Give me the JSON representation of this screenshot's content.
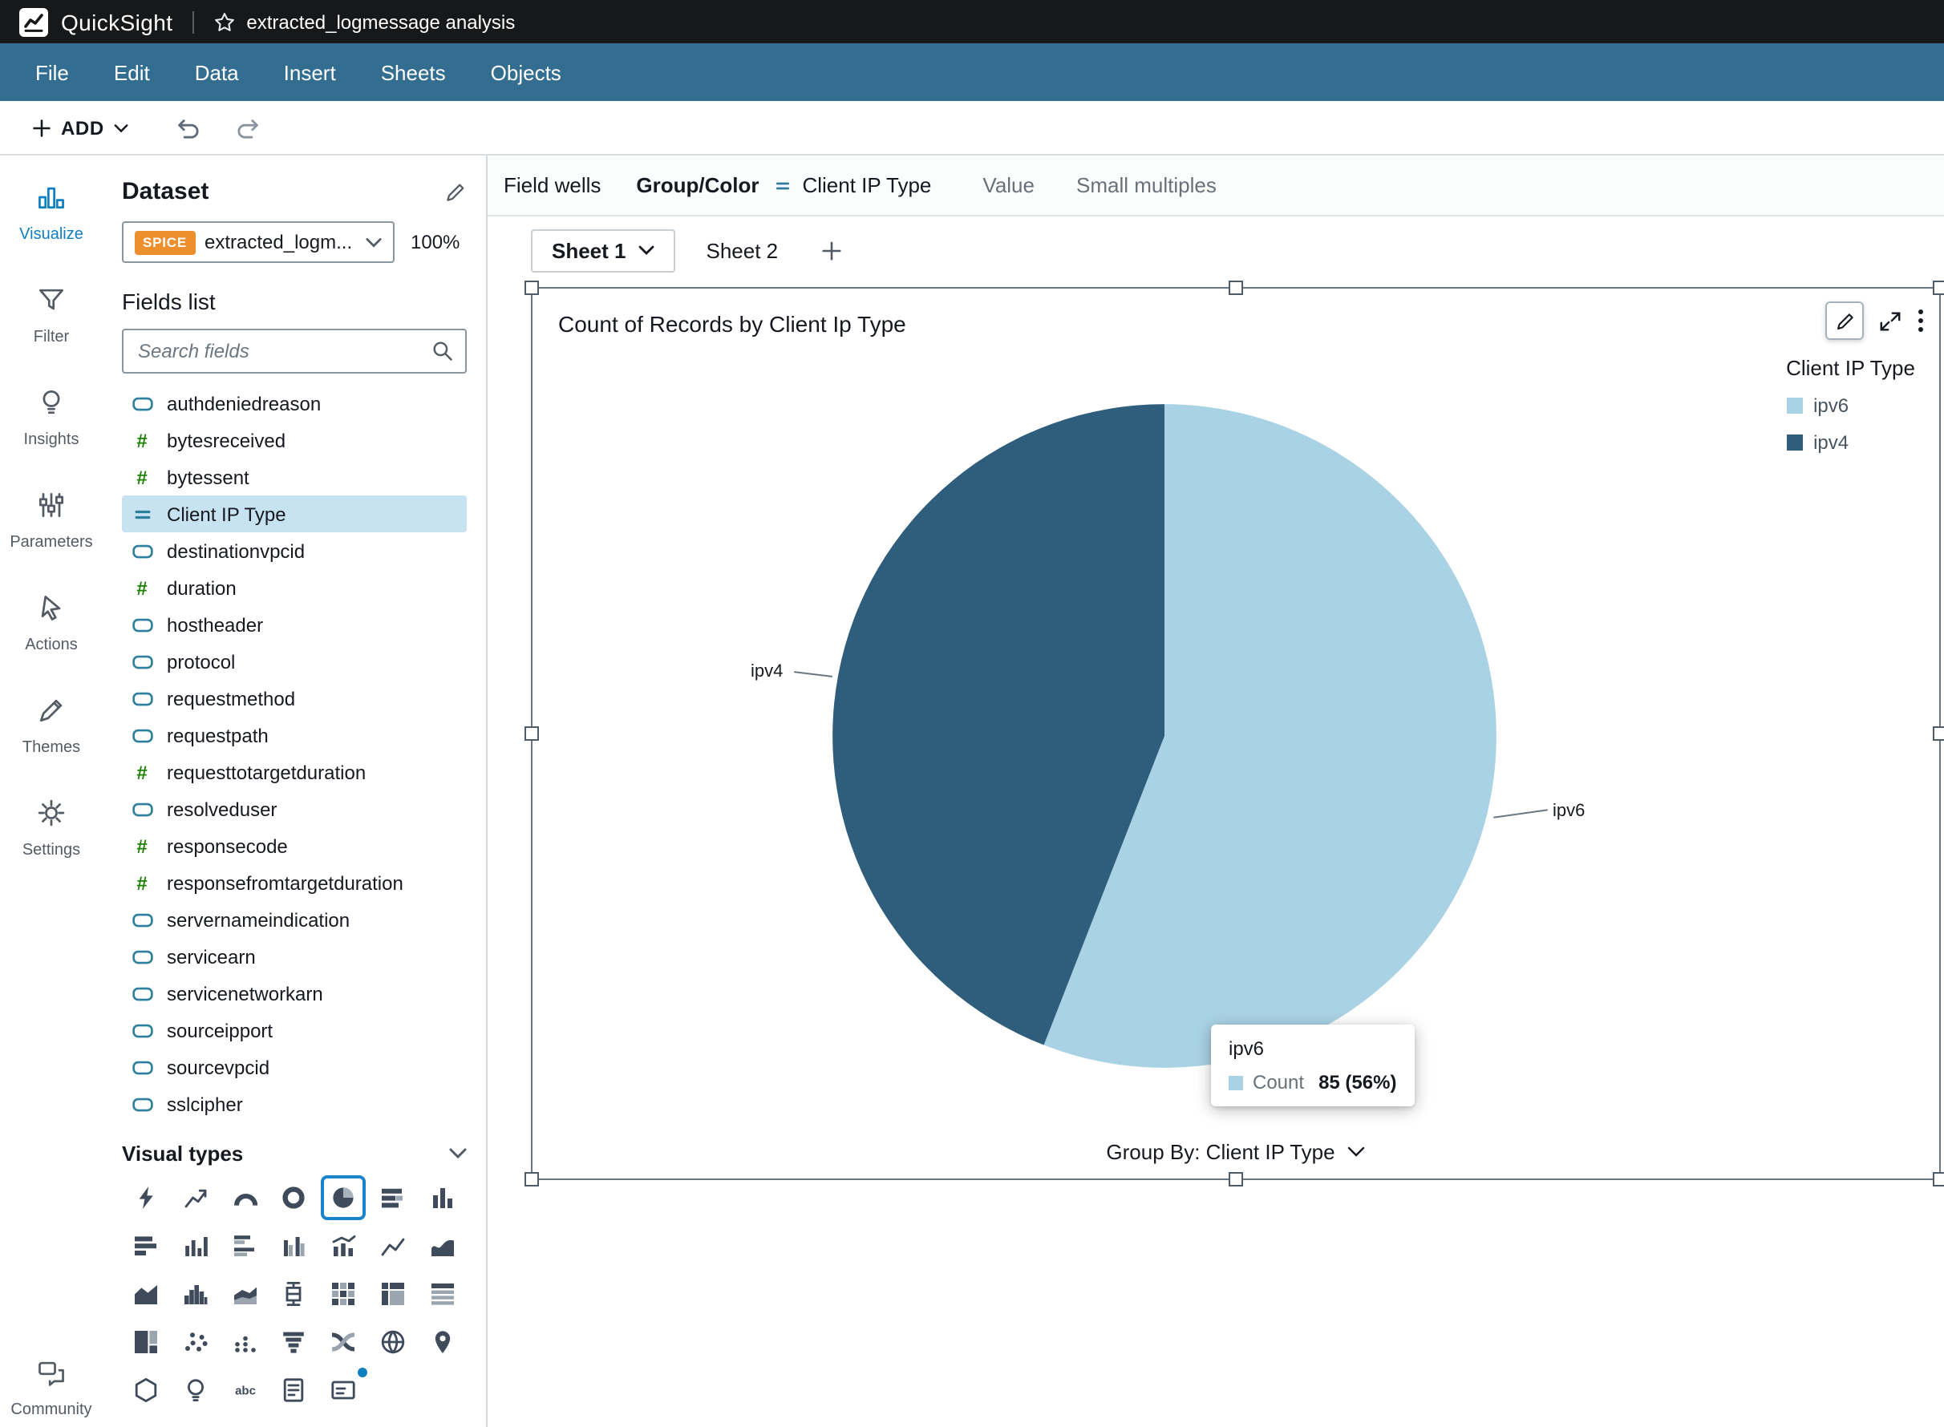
{
  "topbar": {
    "app_name": "QuickSight",
    "analysis_title": "extracted_logmessage analysis"
  },
  "menubar": {
    "items": [
      "File",
      "Edit",
      "Data",
      "Insert",
      "Sheets",
      "Objects"
    ]
  },
  "toolbar": {
    "add_label": "ADD"
  },
  "nav_rail": {
    "items": [
      {
        "label": "Visualize",
        "icon": "visualize-icon",
        "active": true
      },
      {
        "label": "Filter",
        "icon": "filter-icon",
        "active": false
      },
      {
        "label": "Insights",
        "icon": "insights-icon",
        "active": false
      },
      {
        "label": "Parameters",
        "icon": "parameters-icon",
        "active": false
      },
      {
        "label": "Actions",
        "icon": "actions-icon",
        "active": false
      },
      {
        "label": "Themes",
        "icon": "themes-icon",
        "active": false
      },
      {
        "label": "Settings",
        "icon": "settings-icon",
        "active": false
      }
    ],
    "bottom_item": {
      "label": "Community",
      "icon": "community-icon"
    }
  },
  "dataset_panel": {
    "title": "Dataset",
    "spice_badge": "SPICE",
    "dataset_name": "extracted_logm...",
    "spice_percent": "100%",
    "fields_title": "Fields list",
    "search_placeholder": "Search fields",
    "fields": [
      {
        "name": "authdeniedreason",
        "type": "string"
      },
      {
        "name": "bytesreceived",
        "type": "number"
      },
      {
        "name": "bytessent",
        "type": "number"
      },
      {
        "name": "Client IP Type",
        "type": "calculated",
        "selected": true
      },
      {
        "name": "destinationvpcid",
        "type": "string"
      },
      {
        "name": "duration",
        "type": "number"
      },
      {
        "name": "hostheader",
        "type": "string"
      },
      {
        "name": "protocol",
        "type": "string"
      },
      {
        "name": "requestmethod",
        "type": "string"
      },
      {
        "name": "requestpath",
        "type": "string"
      },
      {
        "name": "requesttotargetduration",
        "type": "number"
      },
      {
        "name": "resolveduser",
        "type": "string"
      },
      {
        "name": "responsecode",
        "type": "number"
      },
      {
        "name": "responsefromtargetduration",
        "type": "number"
      },
      {
        "name": "servernameindication",
        "type": "string"
      },
      {
        "name": "servicearn",
        "type": "string"
      },
      {
        "name": "servicenetworkarn",
        "type": "string"
      },
      {
        "name": "sourceipport",
        "type": "string"
      },
      {
        "name": "sourcevpcid",
        "type": "string"
      },
      {
        "name": "sslcipher",
        "type": "string"
      }
    ],
    "visual_types": {
      "title": "Visual types",
      "selected": "pie",
      "options": [
        "bolt",
        "trend-up",
        "gauge",
        "donut",
        "pie",
        "bar-h-stacked",
        "bar-v",
        "bar-h",
        "bar-v-small",
        "bar-h-multi",
        "bar-v-paired",
        "combo",
        "line",
        "area-smooth",
        "area",
        "histogram",
        "stacked-area",
        "box-plot",
        "heatmap",
        "pivot-table",
        "table",
        "treemap",
        "scatter",
        "dot-plot",
        "funnel",
        "sankey",
        "filled-map",
        "points-map",
        "hex",
        "insight-bulb",
        "word-cloud",
        "narrative",
        "kpi"
      ]
    }
  },
  "field_wells": {
    "label": "Field wells",
    "group_color_label": "Group/Color",
    "group_color_value": "Client IP Type",
    "value_label": "Value",
    "small_multiples_label": "Small multiples"
  },
  "sheets": {
    "tabs": [
      "Sheet 1",
      "Sheet 2"
    ],
    "active": "Sheet 1"
  },
  "visual": {
    "title": "Count of Records by Client Ip Type",
    "legend_title": "Client IP Type",
    "group_by_label": "Group By: Client IP Type",
    "tooltip": {
      "category": "ipv6",
      "metric_label": "Count",
      "metric_value": "85 (56%)"
    }
  },
  "chart_data": {
    "type": "pie",
    "title": "Count of Records by Client Ip Type",
    "categories": [
      "ipv6",
      "ipv4"
    ],
    "values": [
      85,
      67
    ],
    "percent_labels": [
      "56%",
      "44%"
    ],
    "colors": [
      "#a9d3e5",
      "#2f5e7c"
    ],
    "legend_title": "Client IP Type",
    "legend_position": "top-right",
    "start_angle_deg": 0,
    "direction": "clockwise"
  }
}
